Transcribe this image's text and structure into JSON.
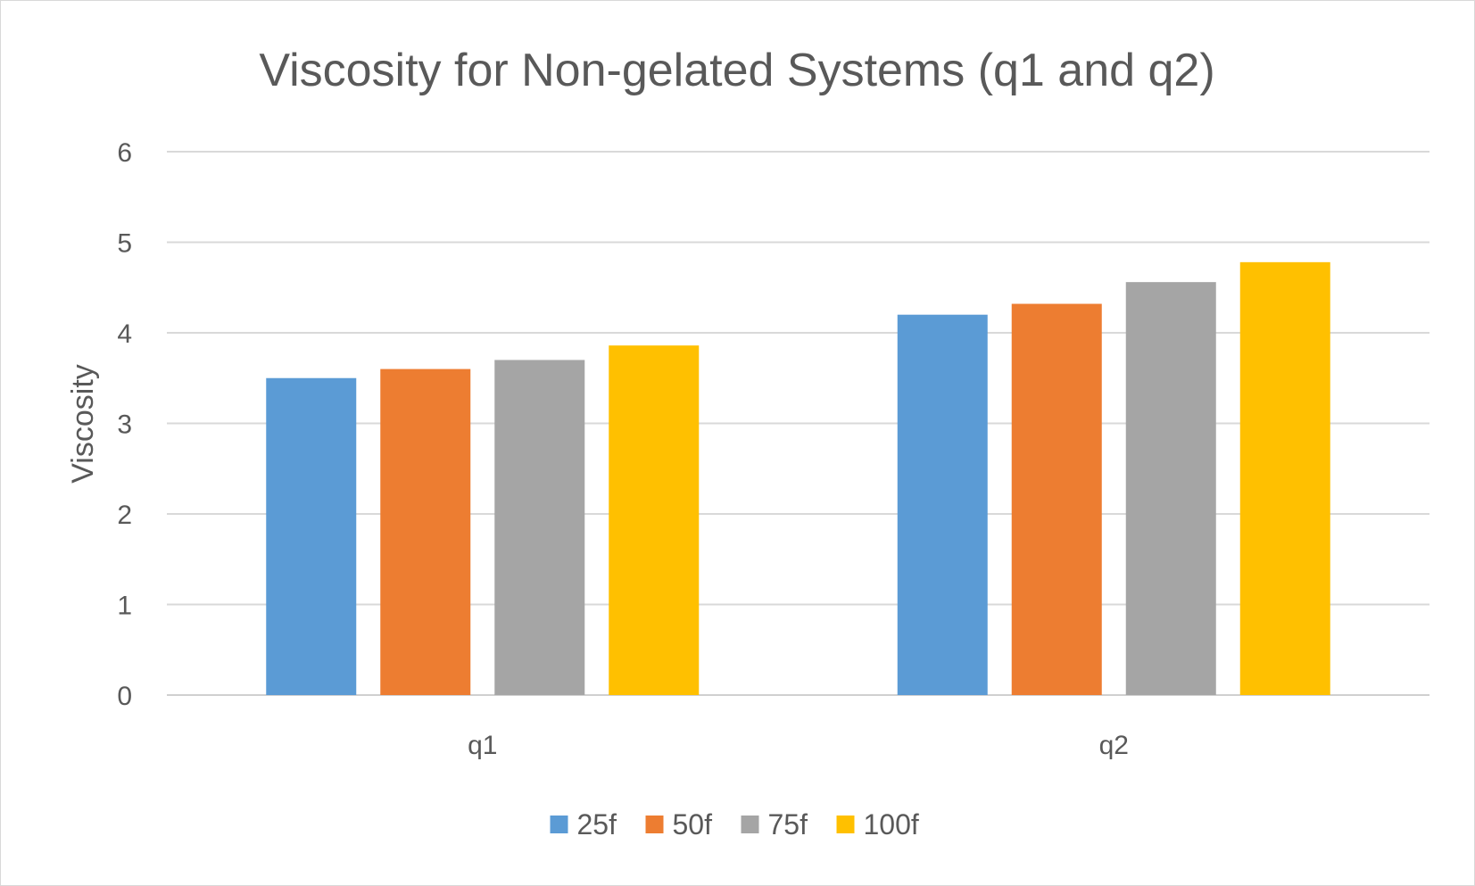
{
  "chart_data": {
    "type": "bar",
    "title": "Viscosity for Non-gelated Systems (q1 and q2)",
    "xlabel": "",
    "ylabel": "Viscosity",
    "categories": [
      "q1",
      "q2"
    ],
    "series": [
      {
        "name": "25f",
        "values": [
          3.5,
          4.2
        ],
        "color": "#5B9BD5"
      },
      {
        "name": "50f",
        "values": [
          3.6,
          4.32
        ],
        "color": "#ED7D31"
      },
      {
        "name": "75f",
        "values": [
          3.7,
          4.56
        ],
        "color": "#A5A5A5"
      },
      {
        "name": "100f",
        "values": [
          3.86,
          4.78
        ],
        "color": "#FFC000"
      }
    ],
    "ylim": [
      0,
      6
    ],
    "yticks": [
      "0",
      "1",
      "2",
      "3",
      "4",
      "5",
      "6"
    ],
    "grid": true,
    "legend_position": "bottom"
  }
}
